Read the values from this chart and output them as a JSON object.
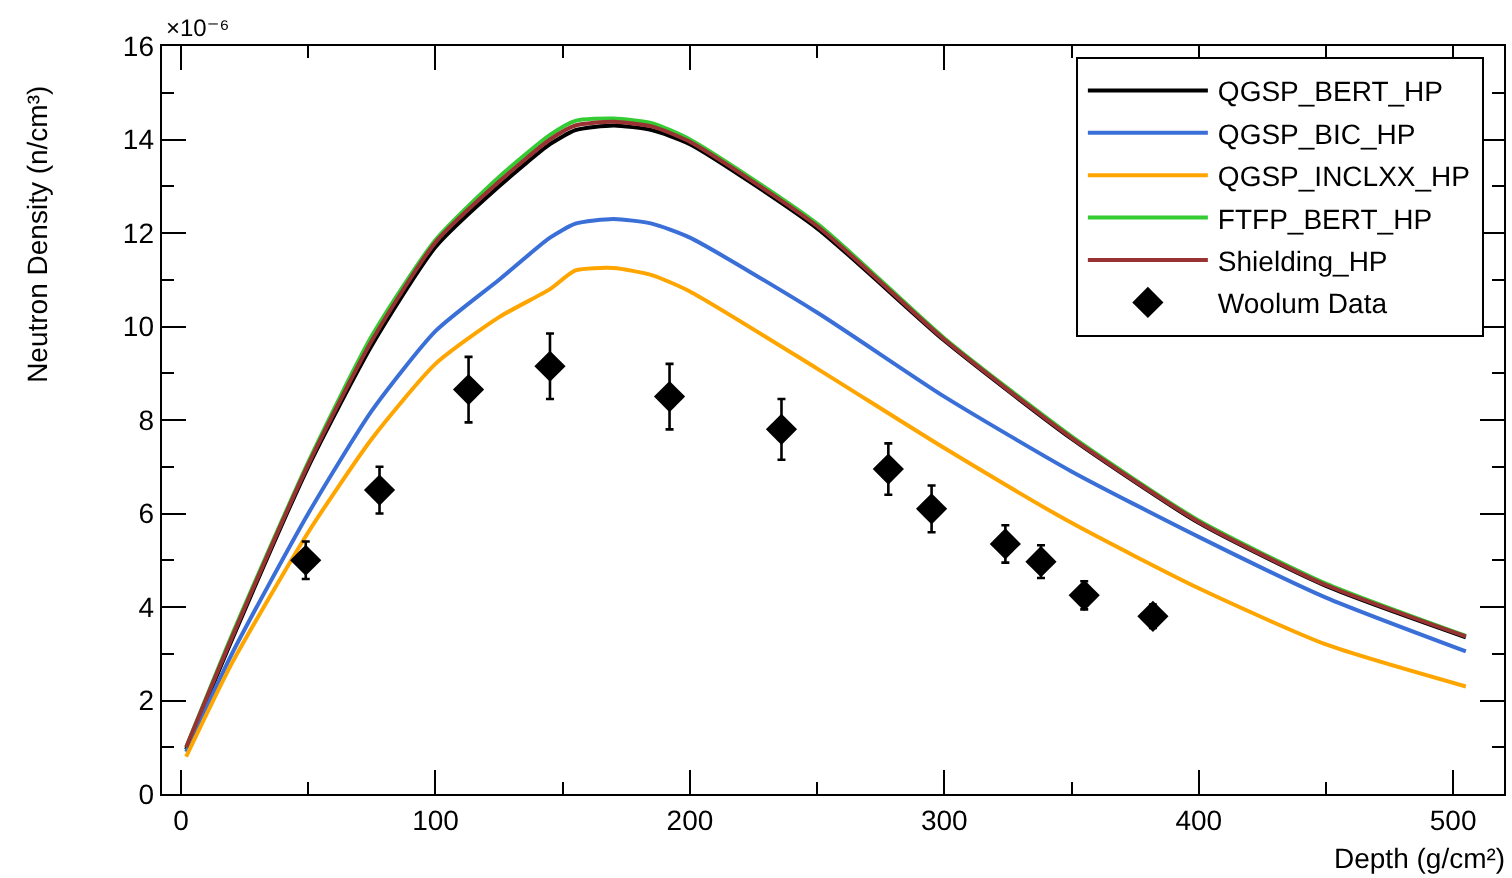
{
  "chart_data": {
    "type": "line",
    "xlabel": "Depth (g/cm²)",
    "ylabel": "Neutron Density (n/cm³)",
    "annotations": [
      "×10⁻⁶"
    ],
    "xlim": [
      -7.5,
      520
    ],
    "xticks": [
      0,
      100,
      200,
      300,
      400,
      500
    ],
    "ylim": [
      0,
      16
    ],
    "yticks": [
      0,
      2,
      4,
      6,
      8,
      10,
      12,
      14,
      16
    ],
    "grid": false,
    "legend": "top right",
    "line_style": "solid",
    "x": [
      2,
      20,
      50,
      75,
      100,
      125,
      145,
      155,
      170,
      185,
      200,
      250,
      300,
      350,
      400,
      450,
      505
    ],
    "series": [
      {
        "name": "QGSP_BERT_HP",
        "color": "#000000",
        "values": [
          0.95,
          3.3,
          7.0,
          9.6,
          11.7,
          13.0,
          13.9,
          14.2,
          14.3,
          14.2,
          13.9,
          12.1,
          9.7,
          7.6,
          5.8,
          4.45,
          3.35
        ]
      },
      {
        "name": "QGSP_BIC_HP",
        "color": "#3a6fd8",
        "values": [
          0.9,
          3.0,
          6.0,
          8.2,
          9.9,
          11.0,
          11.9,
          12.2,
          12.3,
          12.2,
          11.9,
          10.3,
          8.5,
          6.9,
          5.5,
          4.2,
          3.05
        ]
      },
      {
        "name": "QGSP_INCLXX_HP",
        "color": "#ffa500",
        "values": [
          0.8,
          2.8,
          5.6,
          7.6,
          9.2,
          10.2,
          10.8,
          11.2,
          11.25,
          11.1,
          10.75,
          9.1,
          7.4,
          5.8,
          4.4,
          3.2,
          2.3
        ]
      },
      {
        "name": "FTFP_BERT_HP",
        "color": "#33cc33",
        "values": [
          1.0,
          3.4,
          7.1,
          9.8,
          11.85,
          13.2,
          14.1,
          14.4,
          14.45,
          14.35,
          14.0,
          12.2,
          9.75,
          7.65,
          5.85,
          4.5,
          3.38
        ]
      },
      {
        "name": "Shielding_HP",
        "color": "#993333",
        "values": [
          1.0,
          3.35,
          7.05,
          9.7,
          11.8,
          13.1,
          14.0,
          14.3,
          14.38,
          14.28,
          13.95,
          12.15,
          9.72,
          7.62,
          5.82,
          4.47,
          3.37
        ]
      },
      {
        "name": "Woolum Data",
        "type": "scatter",
        "marker": "diamond",
        "color": "#000000",
        "x": [
          49,
          78,
          113,
          145,
          192,
          236,
          278,
          295,
          324,
          338,
          355,
          382
        ],
        "values": [
          5.0,
          6.5,
          8.65,
          9.15,
          8.5,
          7.8,
          6.95,
          6.1,
          5.35,
          4.97,
          4.25,
          3.8
        ],
        "errors": [
          0.4,
          0.5,
          0.7,
          0.7,
          0.7,
          0.65,
          0.55,
          0.5,
          0.4,
          0.35,
          0.3,
          0.25
        ]
      }
    ]
  }
}
